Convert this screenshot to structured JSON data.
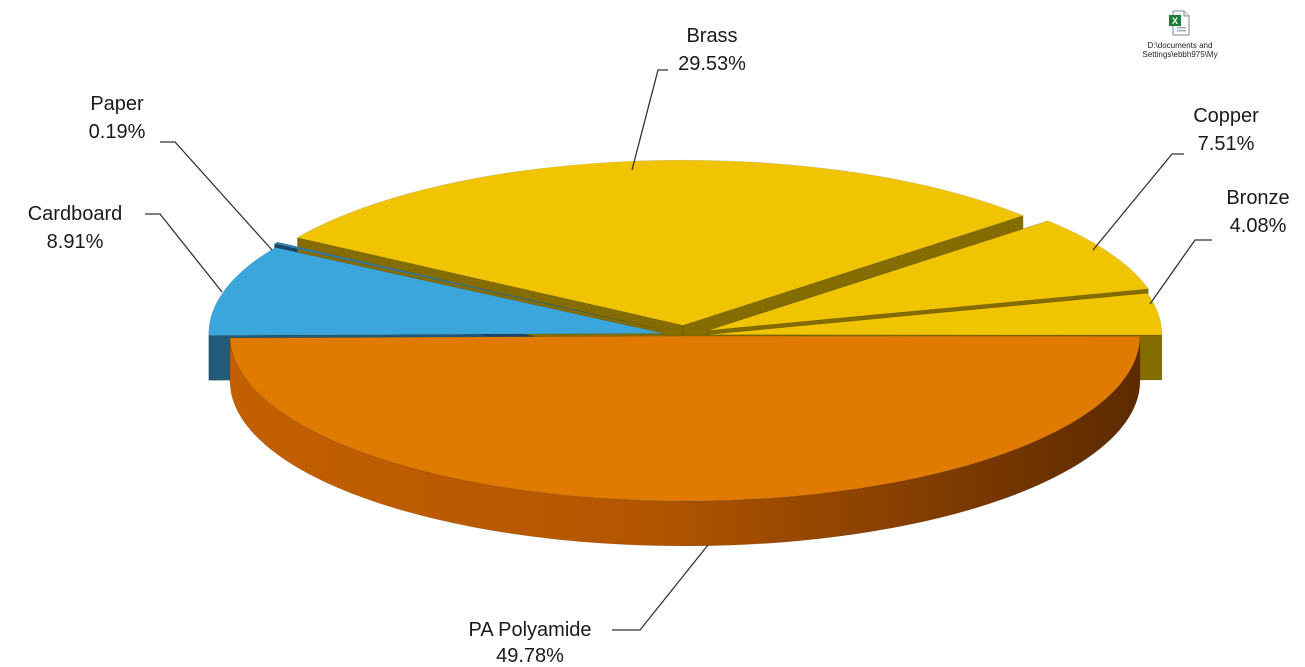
{
  "chart_data": {
    "type": "pie",
    "categories": [
      "PA Polyamide",
      "Cardboard",
      "Paper",
      "Brass",
      "Copper",
      "Bronze"
    ],
    "values": [
      49.78,
      8.91,
      0.19,
      29.53,
      7.51,
      4.08
    ],
    "value_labels": [
      "49.78%",
      "8.91%",
      "0.19%",
      "29.53%",
      "7.51%",
      "4.08%"
    ],
    "colors": [
      "#e07a00",
      "#3aa6dc",
      "#2f7fb5",
      "#f0c400",
      "#f0c400",
      "#f0c400"
    ],
    "title": "",
    "legend": "none",
    "three_d": true,
    "exploded": true
  },
  "embedded_file": {
    "icon": "excel-file-icon",
    "caption": "D:\\documents and Settings\\ebbh975\\My"
  }
}
